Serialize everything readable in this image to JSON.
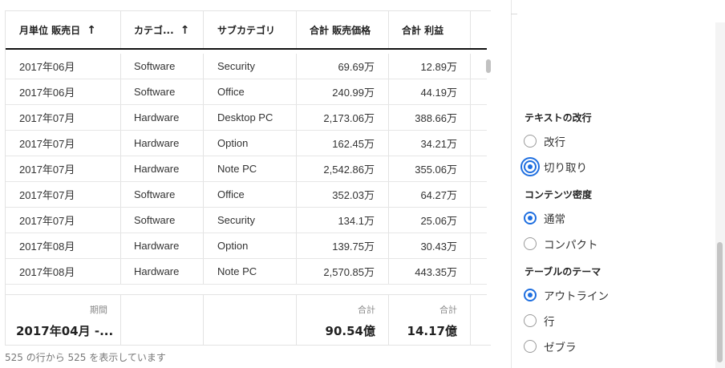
{
  "table": {
    "columns": [
      {
        "label": "月単位 販売日",
        "sort": "↑"
      },
      {
        "label": "カテゴ...",
        "sort": "↑"
      },
      {
        "label": "サブカテゴリ",
        "sort": ""
      },
      {
        "label": "合計 販売価格",
        "sort": ""
      },
      {
        "label": "合計 利益",
        "sort": ""
      }
    ],
    "rows": [
      [
        "2017年06月",
        "Software",
        "Security",
        "69.69万",
        "12.89万"
      ],
      [
        "2017年06月",
        "Software",
        "Office",
        "240.99万",
        "44.19万"
      ],
      [
        "2017年07月",
        "Hardware",
        "Desktop PC",
        "2,173.06万",
        "388.66万"
      ],
      [
        "2017年07月",
        "Hardware",
        "Option",
        "162.45万",
        "34.21万"
      ],
      [
        "2017年07月",
        "Hardware",
        "Note PC",
        "2,542.86万",
        "355.06万"
      ],
      [
        "2017年07月",
        "Software",
        "Office",
        "352.03万",
        "64.27万"
      ],
      [
        "2017年07月",
        "Software",
        "Security",
        "134.1万",
        "25.06万"
      ],
      [
        "2017年08月",
        "Hardware",
        "Option",
        "139.75万",
        "30.43万"
      ],
      [
        "2017年08月",
        "Hardware",
        "Note PC",
        "2,570.85万",
        "443.35万"
      ]
    ],
    "footer": {
      "period_label": "期間",
      "period_value": "2017年04月 -...",
      "sales_label": "合計",
      "sales_value": "90.54億",
      "profit_label": "合計",
      "profit_value": "14.17億"
    },
    "row_count_text": "525 の行から 525 を表示しています"
  },
  "panel": {
    "sections": [
      {
        "title": "テキストの改行",
        "options": [
          {
            "label": "改行",
            "checked": false
          },
          {
            "label": "切り取り",
            "checked": true,
            "focused": true
          }
        ]
      },
      {
        "title": "コンテンツ密度",
        "options": [
          {
            "label": "通常",
            "checked": true
          },
          {
            "label": "コンパクト",
            "checked": false
          }
        ]
      },
      {
        "title": "テーブルのテーマ",
        "options": [
          {
            "label": "アウトライン",
            "checked": true
          },
          {
            "label": "行",
            "checked": false
          },
          {
            "label": "ゼブラ",
            "checked": false
          }
        ]
      }
    ]
  },
  "colors": {
    "accent": "#1f6fe0",
    "header_rule": "#111111",
    "grid": "#e3e3e3"
  }
}
